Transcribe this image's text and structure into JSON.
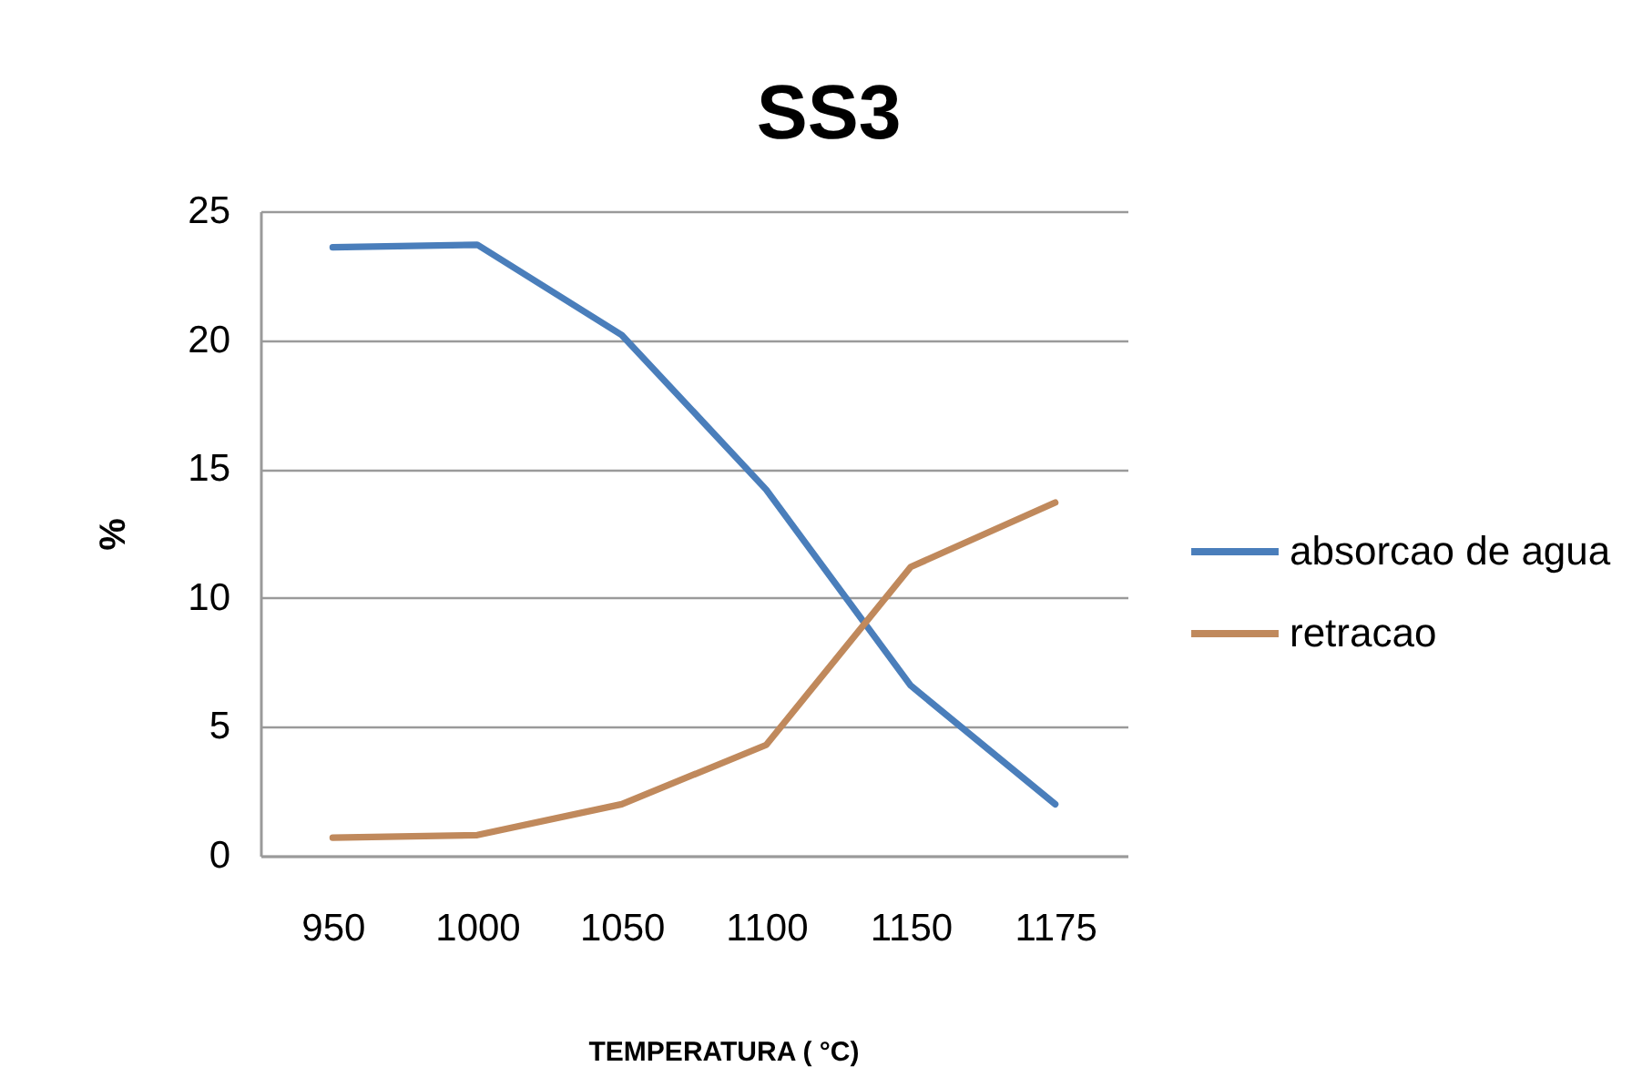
{
  "chart_data": {
    "type": "line",
    "title": "SS3",
    "xlabel": "TEMPERATURA ( °C)",
    "ylabel": "%",
    "categories": [
      "950",
      "1000",
      "1050",
      "1100",
      "1150",
      "1175"
    ],
    "series": [
      {
        "name": "absorcao de agua",
        "color": "#4a7ebb",
        "values": [
          23.6,
          23.7,
          20.2,
          14.2,
          6.6,
          2.0
        ]
      },
      {
        "name": "retracao",
        "color": "#c0895c",
        "values": [
          0.7,
          0.8,
          2.0,
          4.3,
          11.2,
          13.7
        ]
      }
    ],
    "ylim": [
      0,
      25
    ],
    "yticks": [
      0,
      5,
      10,
      15,
      20,
      25
    ],
    "grid": "y",
    "legend": "right",
    "line_style": "solid"
  }
}
